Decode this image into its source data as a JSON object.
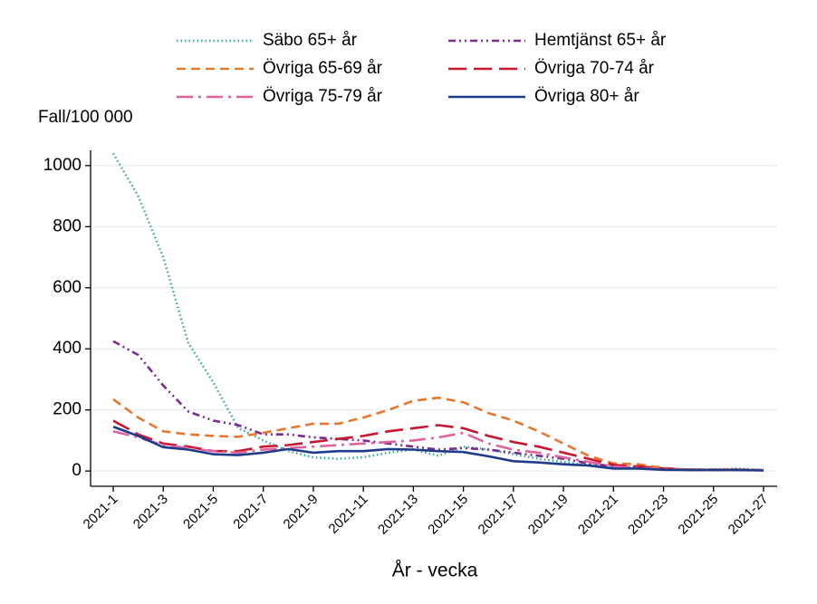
{
  "chart_data": {
    "type": "line",
    "y_label": "Fall/100 000",
    "x_label": "År - vecka",
    "categories": [
      "2021-1",
      null,
      "2021-3",
      null,
      "2021-5",
      null,
      "2021-7",
      null,
      "2021-9",
      null,
      "2021-11",
      null,
      "2021-13",
      null,
      "2021-15",
      null,
      "2021-17",
      null,
      "2021-19",
      null,
      "2021-21",
      null,
      "2021-23",
      null,
      "2021-25",
      null,
      "2021-27"
    ],
    "ylim": [
      -50,
      1050
    ],
    "yticks": [
      0,
      200,
      400,
      600,
      800,
      1000
    ],
    "grid": true,
    "series": [
      {
        "name": "Säbo 65+ år",
        "color": "#3aa99b",
        "dash": "dotted",
        "values": [
          1040,
          900,
          700,
          420,
          290,
          140,
          100,
          65,
          45,
          40,
          45,
          60,
          70,
          50,
          80,
          70,
          55,
          40,
          30,
          20,
          15,
          12,
          8,
          5,
          5,
          8,
          3
        ]
      },
      {
        "name": "Hemtjänst 65+ år",
        "color": "#7b2b8e",
        "dash": "dashdotdot",
        "values": [
          425,
          380,
          280,
          195,
          165,
          150,
          120,
          120,
          110,
          105,
          100,
          90,
          80,
          70,
          75,
          70,
          60,
          50,
          40,
          25,
          15,
          12,
          8,
          5,
          5,
          5,
          3
        ]
      },
      {
        "name": "Övriga 65-69 år",
        "color": "#e8772e",
        "dash": "dashed",
        "values": [
          235,
          175,
          130,
          120,
          115,
          112,
          125,
          140,
          155,
          155,
          175,
          200,
          230,
          240,
          225,
          190,
          165,
          130,
          90,
          50,
          25,
          22,
          10,
          5,
          5,
          5,
          3
        ]
      },
      {
        "name": "Övriga 70-74 år",
        "color": "#c8162e",
        "dash": "longdash",
        "values": [
          165,
          120,
          90,
          80,
          65,
          65,
          80,
          85,
          95,
          105,
          115,
          130,
          140,
          150,
          140,
          115,
          95,
          80,
          60,
          40,
          20,
          15,
          8,
          4,
          4,
          4,
          2
        ]
      },
      {
        "name": "Övriga 75-79 år",
        "color": "#e0629f",
        "dash": "longdashdot",
        "values": [
          130,
          110,
          85,
          75,
          65,
          60,
          70,
          75,
          80,
          85,
          90,
          95,
          100,
          110,
          125,
          90,
          70,
          60,
          45,
          30,
          15,
          10,
          6,
          4,
          4,
          3,
          2
        ]
      },
      {
        "name": "Övriga 80+ år",
        "color": "#1f3c8c",
        "dash": "solid",
        "values": [
          145,
          115,
          78,
          70,
          55,
          52,
          60,
          72,
          60,
          65,
          65,
          72,
          70,
          65,
          62,
          48,
          32,
          28,
          22,
          18,
          8,
          8,
          4,
          3,
          3,
          3,
          2
        ]
      }
    ]
  }
}
